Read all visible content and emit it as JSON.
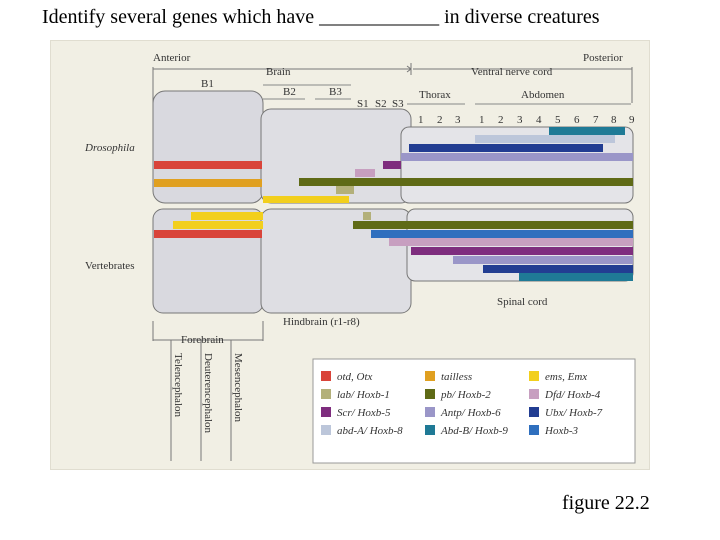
{
  "slide": {
    "title": "Identify several genes which have ____________ in diverse creatures",
    "caption": "figure 22.2"
  },
  "figure": {
    "axis": {
      "anterior": "Anterior",
      "posterior": "Posterior"
    },
    "regions": {
      "brain": "Brain",
      "ventral_nerve_cord": "Ventral nerve cord",
      "b1": "B1",
      "b2": "B2",
      "b3": "B3",
      "s1": "S1",
      "s2": "S2",
      "s3": "S3",
      "thorax": "Thorax",
      "abdomen": "Abdomen",
      "thorax_segments": [
        "1",
        "2",
        "3"
      ],
      "abdomen_segments": [
        "1",
        "2",
        "3",
        "4",
        "5",
        "6",
        "7",
        "8",
        "9"
      ]
    },
    "organisms": {
      "drosophila": "Drosophila",
      "vertebrates": "Vertebrates"
    },
    "bottom_regions": {
      "forebrain": "Forebrain",
      "hindbrain": "Hindbrain (r1-r8)",
      "spinal_cord": "Spinal cord",
      "telencephalon": "Telencephalon",
      "deuterencephalon": "Deuterencephalon",
      "mesencephalon": "Mesencephalon"
    },
    "legend": [
      {
        "label": "otd, Otx",
        "color": "#d9443a"
      },
      {
        "label": "tailless",
        "color": "#e0a020"
      },
      {
        "label": "ems, Emx",
        "color": "#f2cf1d"
      },
      {
        "label": "lab/ Hoxb-1",
        "color": "#b3b07a"
      },
      {
        "label": "pb/ Hoxb-2",
        "color": "#5f6a16"
      },
      {
        "label": "Dfd/ Hoxb-4",
        "color": "#c79fc0"
      },
      {
        "label": "Scr/ Hoxb-5",
        "color": "#7e2d7e"
      },
      {
        "label": "Antp/ Hoxb-6",
        "color": "#9a96c8"
      },
      {
        "label": "Ubx/ Hoxb-7",
        "color": "#223d92"
      },
      {
        "label": "abd-A/ Hoxb-8",
        "color": "#bcc6da"
      },
      {
        "label": "Abd-B/ Hoxb-9",
        "color": "#1f7a96"
      },
      {
        "label": "Hoxb-3",
        "color": "#2f6fbe"
      }
    ]
  }
}
